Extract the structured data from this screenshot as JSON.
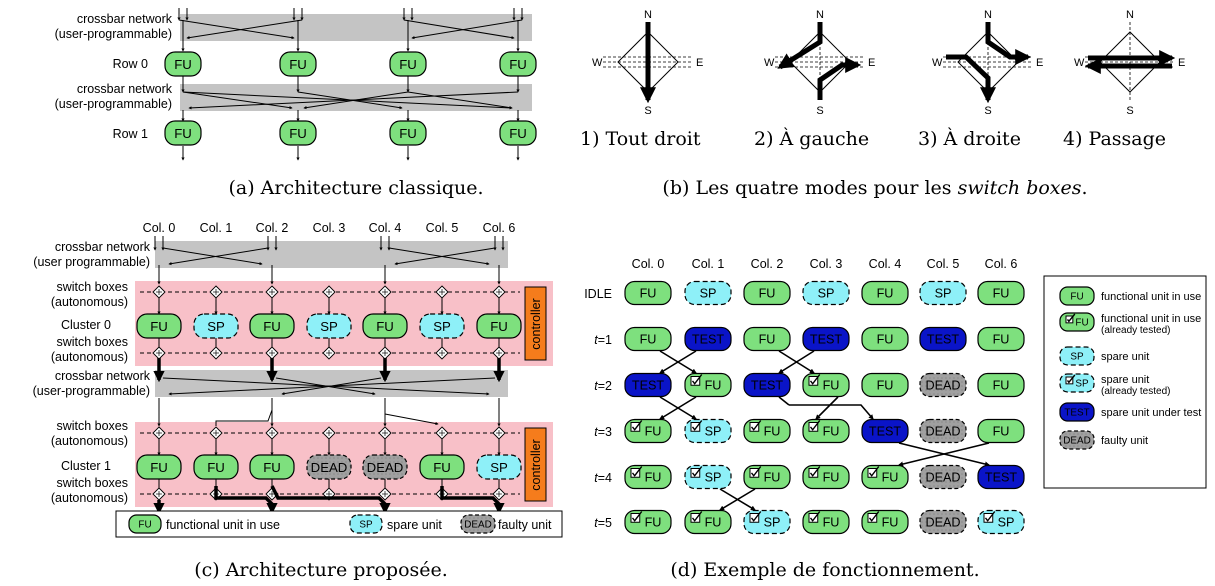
{
  "panel_a": {
    "crossbar_label_1": "crossbar network",
    "crossbar_label_2": "(user-programmable)",
    "row0": "Row 0",
    "row1": "Row 1",
    "fu": "FU",
    "caption": "(a) Architecture classique."
  },
  "panel_b": {
    "compass": {
      "n": "N",
      "s": "S",
      "e": "E",
      "w": "W"
    },
    "modes": [
      "1) Tout droit",
      "2) À gauche",
      "3) À droite",
      "4) Passage"
    ],
    "caption_before": "(b) Les quatre modes pour les ",
    "caption_italic": "switch boxes",
    "caption_after": "."
  },
  "panel_c": {
    "columns": [
      "Col. 0",
      "Col. 1",
      "Col. 2",
      "Col. 3",
      "Col. 4",
      "Col. 5",
      "Col. 6"
    ],
    "crossbar_1": "crossbar network",
    "crossbar_1b": "(user programmable)",
    "crossbar_2": "crossbar network",
    "crossbar_2b": "(user-programmable)",
    "switch_1": "switch boxes",
    "switch_1b": "(autonomous)",
    "cluster0": "Cluster 0",
    "cluster1": "Cluster 1",
    "controller": "controller",
    "cluster0_units": [
      "FU",
      "SP",
      "FU",
      "SP",
      "FU",
      "SP",
      "FU"
    ],
    "cluster1_units": [
      "FU",
      "FU",
      "FU",
      "DEAD",
      "DEAD",
      "FU",
      "SP"
    ],
    "legend": {
      "fu": "FU",
      "fu_text": "functional unit in use",
      "sp": "SP",
      "sp_text": "spare unit",
      "dead": "DEAD",
      "dead_text": "faulty unit"
    },
    "caption": "(c) Architecture proposée."
  },
  "panel_d": {
    "columns": [
      "Col. 0",
      "Col. 1",
      "Col. 2",
      "Col. 3",
      "Col. 4",
      "Col. 5",
      "Col. 6"
    ],
    "rows": [
      {
        "label": "IDLE",
        "t": "",
        "units": [
          "FU",
          "SP",
          "FU",
          "SP",
          "FU",
          "SP",
          "FU"
        ]
      },
      {
        "label": "=1",
        "t": "t",
        "units": [
          "FU",
          "TEST",
          "FU",
          "TEST",
          "FU",
          "TEST",
          "FU"
        ]
      },
      {
        "label": "=2",
        "t": "t",
        "units": [
          "TEST",
          "FUc",
          "TEST",
          "FUc",
          "FU",
          "DEAD",
          "FU"
        ]
      },
      {
        "label": "=3",
        "t": "t",
        "units": [
          "FUc",
          "SPc",
          "FUc",
          "FUc",
          "TEST",
          "DEAD",
          "FU"
        ]
      },
      {
        "label": "=4",
        "t": "t",
        "units": [
          "FUc",
          "SPc",
          "FUc",
          "FUc",
          "FUc",
          "DEAD",
          "TEST"
        ]
      },
      {
        "label": "=5",
        "t": "t",
        "units": [
          "FUc",
          "FUc",
          "SPc",
          "FUc",
          "FUc",
          "DEAD",
          "SPc"
        ]
      }
    ],
    "unit_text": {
      "FU": "FU",
      "SP": "SP",
      "TEST": "TEST",
      "DEAD": "DEAD"
    },
    "legend": [
      {
        "kind": "FU",
        "lines": [
          "functional unit in use"
        ]
      },
      {
        "kind": "FUc",
        "lines": [
          "functional unit in use",
          "(already tested)"
        ]
      },
      {
        "kind": "SP",
        "lines": [
          "spare unit"
        ]
      },
      {
        "kind": "SPc",
        "lines": [
          "spare unit",
          "(already tested)"
        ]
      },
      {
        "kind": "TEST",
        "lines": [
          "spare unit under test"
        ]
      },
      {
        "kind": "DEAD",
        "lines": [
          "faulty unit"
        ]
      }
    ],
    "caption": "(d) Exemple de fonctionnement."
  },
  "colors": {
    "fu": "#7ee07e",
    "sp": "#8ef0f8",
    "test": "#0a14c8",
    "dead": "#a8a8a8",
    "cluster": "#f8c0c8",
    "controller": "#f57c1c",
    "crossbar": "#c4c4c4"
  }
}
